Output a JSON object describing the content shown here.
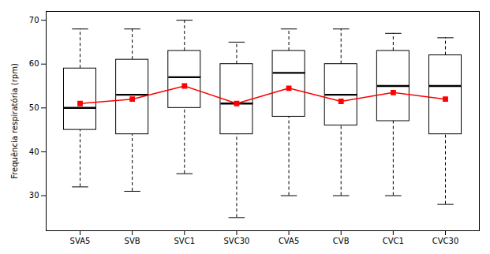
{
  "chart_data": {
    "type": "box",
    "categories": [
      "SVA5",
      "SVB",
      "SVC1",
      "SVC30",
      "CVA5",
      "CVB",
      "CVC1",
      "CVC30"
    ],
    "boxes": [
      {
        "low": 32,
        "q1": 45,
        "median": 50,
        "q3": 59,
        "high": 68
      },
      {
        "low": 31,
        "q1": 44,
        "median": 53,
        "q3": 61,
        "high": 68
      },
      {
        "low": 35,
        "q1": 50,
        "median": 57,
        "q3": 63,
        "high": 70
      },
      {
        "low": 25,
        "q1": 44,
        "median": 51,
        "q3": 60,
        "high": 65
      },
      {
        "low": 30,
        "q1": 48,
        "median": 58,
        "q3": 63,
        "high": 68
      },
      {
        "low": 30,
        "q1": 46,
        "median": 53,
        "q3": 60,
        "high": 68
      },
      {
        "low": 30,
        "q1": 47,
        "median": 55,
        "q3": 63,
        "high": 67
      },
      {
        "low": 28,
        "q1": 44,
        "median": 55,
        "q3": 62,
        "high": 66
      }
    ],
    "series": [
      {
        "type": "line",
        "color": "#FF0000",
        "marker": "square",
        "line_style": "solid",
        "values": [
          51,
          52,
          55,
          51,
          54.5,
          51.5,
          53.5,
          52
        ]
      }
    ],
    "ylabel": "Frequência respiratória (rpm)",
    "ylim": [
      22,
      72
    ],
    "yticks": [
      30,
      40,
      50,
      60,
      70
    ],
    "grid": false
  }
}
